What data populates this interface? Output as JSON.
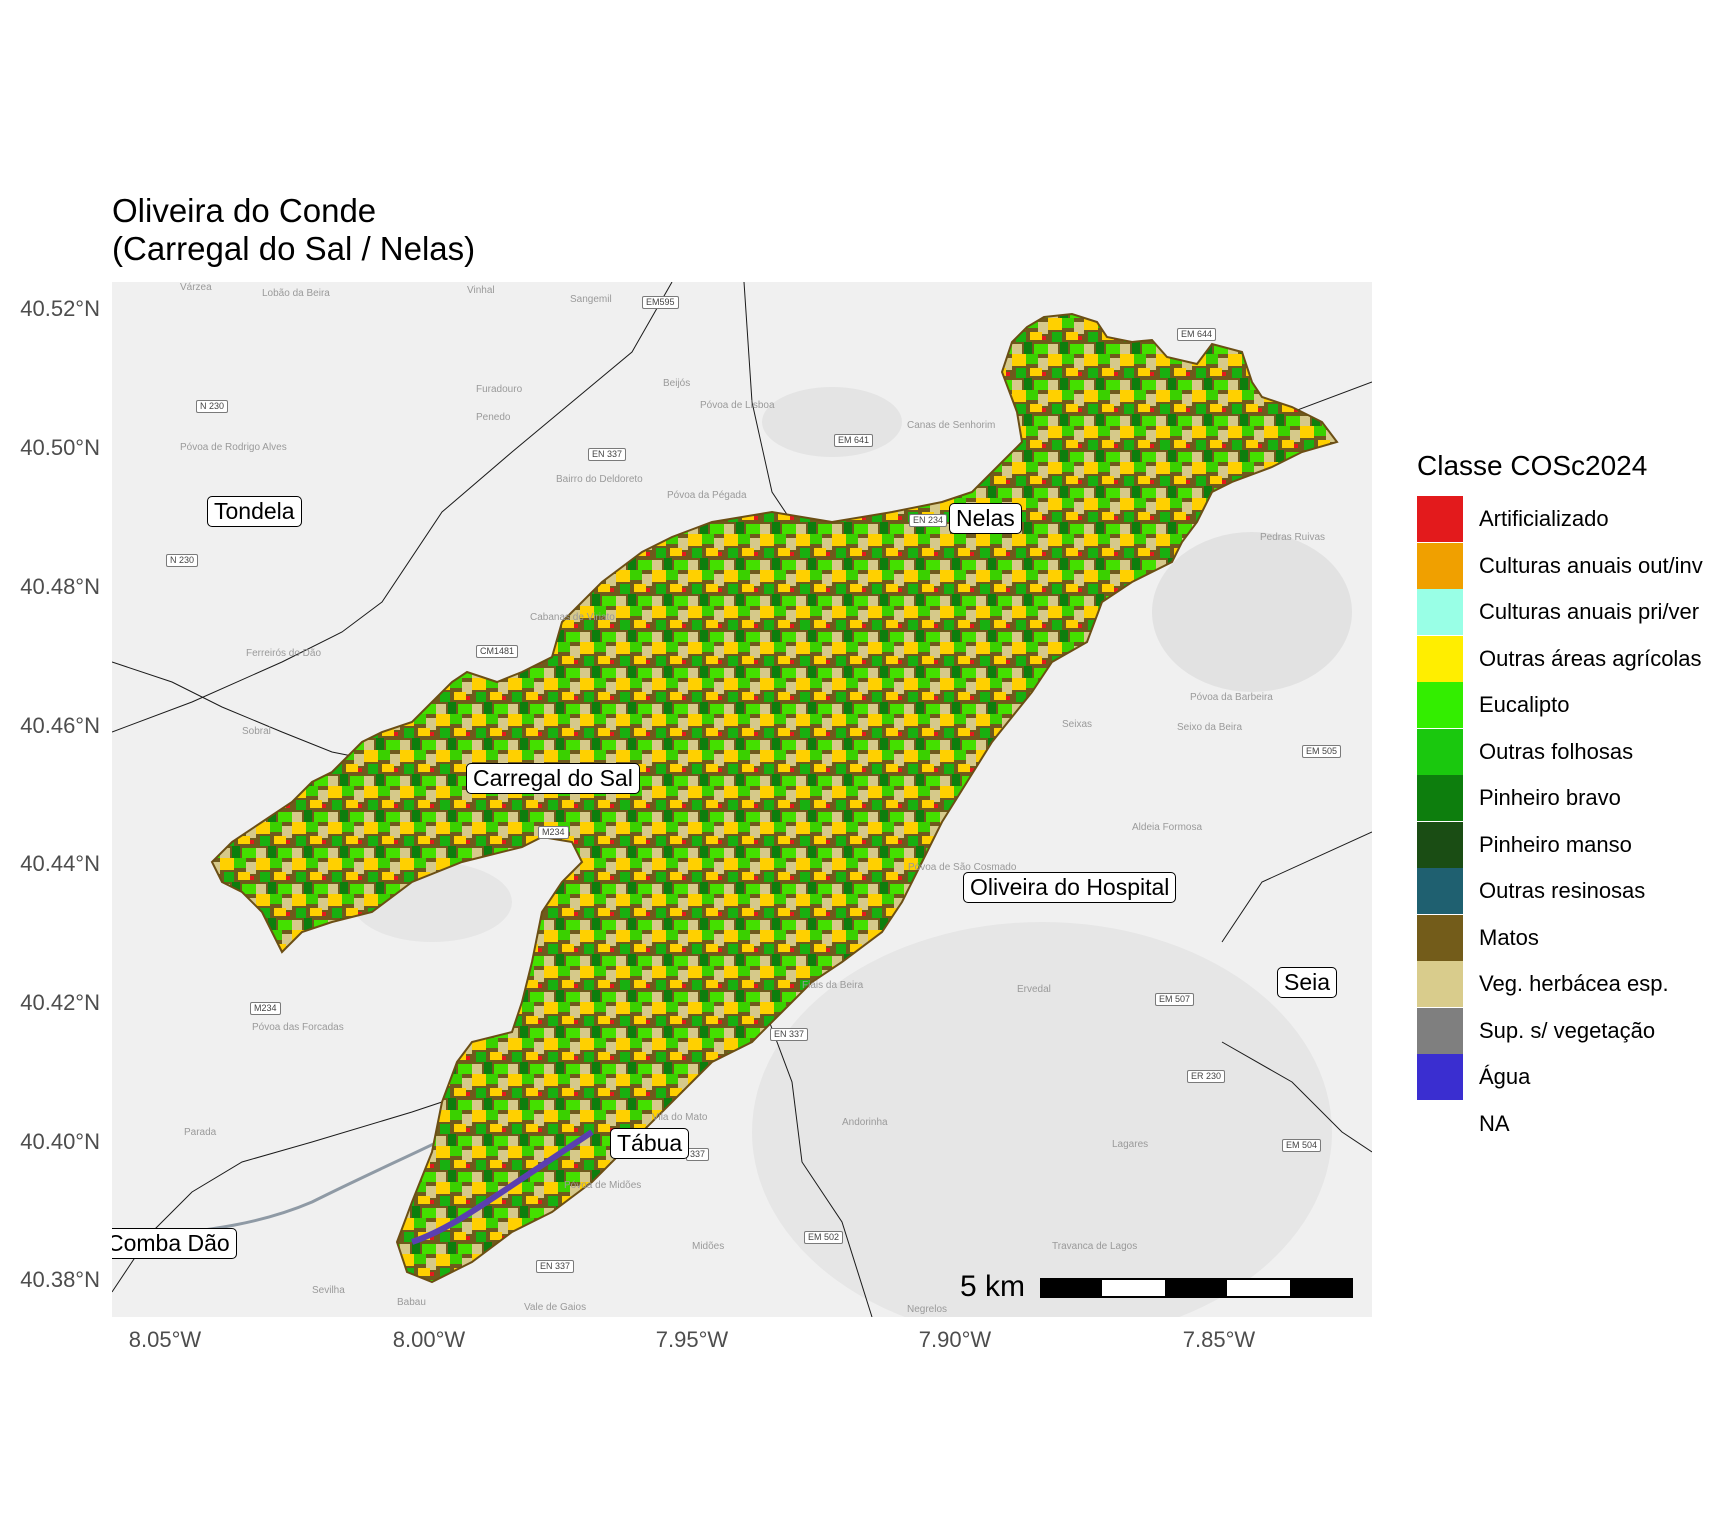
{
  "title": {
    "line1": "Oliveira do Conde",
    "line2": "(Carregal do Sal / Nelas)"
  },
  "axes": {
    "lat_ticks": [
      "40.52°N",
      "40.50°N",
      "40.48°N",
      "40.46°N",
      "40.44°N",
      "40.42°N",
      "40.40°N",
      "40.38°N"
    ],
    "lon_ticks": [
      "8.05°W",
      "8.00°W",
      "7.95°W",
      "7.90°W",
      "7.85°W"
    ]
  },
  "place_labels": [
    "Tondela",
    "Nelas",
    "Carregal do Sal",
    "Oliveira do Hospital",
    "Seia",
    "Tábua",
    "Comba Dão"
  ],
  "basemap_labels": [
    "Várzea",
    "Lobão da Beira",
    "Vinhal",
    "Sangemil",
    "Furadouro",
    "Beijós",
    "Penedo",
    "Póvoa de Lisboa",
    "Canas de Senhorim",
    "Póvoa de Rodrigo Alves",
    "Bairro do Deldoreto",
    "Póvoa da Pégada",
    "Cabanas de Viriato",
    "Ferreirós do Dão",
    "Sobral",
    "Seixas",
    "Póvoa da Barbeira",
    "Seixo da Beira",
    "Aldeia Formosa",
    "Póvoa de São Cosmado",
    "Fiais da Beira",
    "Ervedal",
    "Póvoa das Forcadas",
    "Parada",
    "Vila do Mato",
    "Andorinha",
    "Lagares",
    "Póvoa de Midões",
    "Midões",
    "Travanca de Lagos",
    "Sevilha",
    "Babau",
    "Vale de Gaios",
    "Negrelos",
    "Pedras Ruivas"
  ],
  "road_signs": [
    "EM595",
    "N 230",
    "N 230",
    "EN 337",
    "EM 641",
    "EN 234",
    "EM 644",
    "CM1481",
    "M234",
    "M234",
    "EN 337",
    "EM 507",
    "ER 230",
    "EM 505",
    "EM 504",
    "EM 502",
    "EN 337",
    "337"
  ],
  "scale_bar": {
    "label": "5 km"
  },
  "legend": {
    "title": "Classe COSc2024",
    "items": [
      {
        "label": "Artificializado",
        "color": "#e31a1c"
      },
      {
        "label": "Culturas anuais out/inv",
        "color": "#f0a000"
      },
      {
        "label": "Culturas anuais pri/ver",
        "color": "#99ffe6"
      },
      {
        "label": "Outras áreas agrícolas",
        "color": "#ffee00"
      },
      {
        "label": "Eucalipto",
        "color": "#33ee00"
      },
      {
        "label": "Outras folhosas",
        "color": "#1ac80e"
      },
      {
        "label": "Pinheiro bravo",
        "color": "#0d7e0d"
      },
      {
        "label": "Pinheiro manso",
        "color": "#1a4d14"
      },
      {
        "label": "Outras resinosas",
        "color": "#1f6070"
      },
      {
        "label": "Matos",
        "color": "#735c1a"
      },
      {
        "label": "Veg. herbácea esp.",
        "color": "#d9cc8c"
      },
      {
        "label": "Sup. s/ vegetação",
        "color": "#7f7f7f"
      },
      {
        "label": "Água",
        "color": "#3a2ed0"
      },
      {
        "label": "NA",
        "color": "#ffffff"
      }
    ]
  }
}
